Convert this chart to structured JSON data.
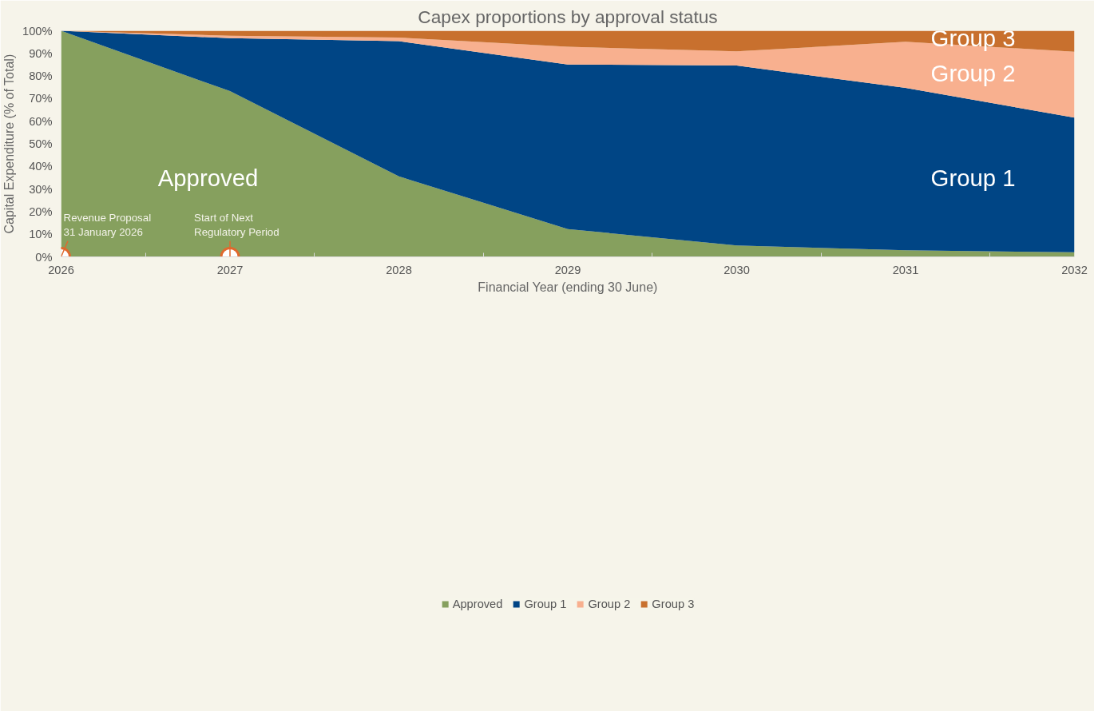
{
  "chart_data": {
    "type": "area",
    "stacked": true,
    "title": "Capex proportions by approval status",
    "xlabel": "Financial Year (ending 30 June)",
    "ylabel": "Capital Expenditure (% of Total)",
    "x": [
      2026,
      2027,
      2028,
      2029,
      2030,
      2031,
      2032
    ],
    "series": [
      {
        "name": "Approved",
        "color": "#86a05e",
        "values": [
          100,
          73.3,
          35.6,
          12.3,
          5.0,
          2.9,
          2.0
        ]
      },
      {
        "name": "Group 1",
        "color": "#004585",
        "values": [
          0,
          23.4,
          59.8,
          72.8,
          79.6,
          71.8,
          59.6
        ]
      },
      {
        "name": "Group 2",
        "color": "#f8b08f",
        "values": [
          0,
          1.1,
          1.6,
          7.8,
          6.3,
          20.4,
          29.1
        ]
      },
      {
        "name": "Group 3",
        "color": "#c8702e",
        "values": [
          0,
          2.2,
          3.0,
          7.1,
          9.1,
          4.9,
          9.3
        ]
      }
    ],
    "xlim": [
      2026,
      2032
    ],
    "xticks": [
      2026,
      2027,
      2028,
      2029,
      2030,
      2031,
      2032
    ],
    "ylim": [
      0,
      100
    ],
    "yticks": [
      {
        "value": 0,
        "label": "0%"
      },
      {
        "value": 10,
        "label": "10%"
      },
      {
        "value": 20,
        "label": "20%"
      },
      {
        "value": 30,
        "label": "30%"
      },
      {
        "value": 40,
        "label": "40%"
      },
      {
        "value": 50,
        "label": "50%"
      },
      {
        "value": 60,
        "label": "60%"
      },
      {
        "value": 70,
        "label": "70%"
      },
      {
        "value": 80,
        "label": "80%"
      },
      {
        "value": 90,
        "label": "90%"
      },
      {
        "value": 100,
        "label": "100%"
      }
    ],
    "annotations": [
      {
        "text": "Revenue Proposal\n31 January 2026",
        "x": 2026,
        "y": 0
      },
      {
        "text": "Start of Next\nRegulatory Period",
        "x": 2027,
        "y": 0
      }
    ],
    "grid": false,
    "legend": "bottom"
  }
}
